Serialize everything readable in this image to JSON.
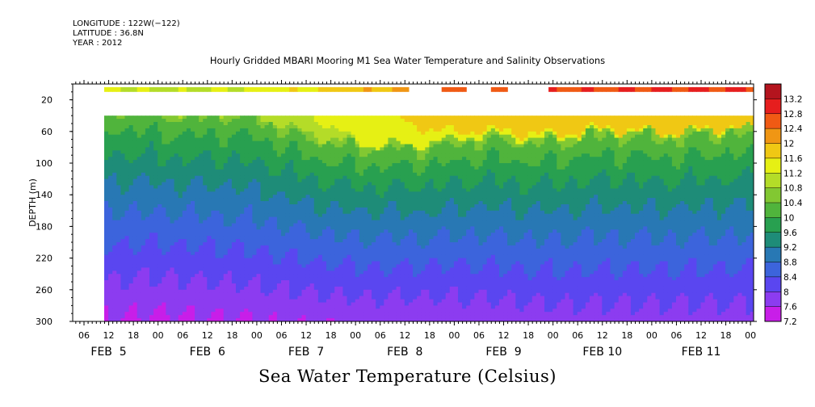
{
  "meta": {
    "longitude": "LONGITUDE : 122W(−122)",
    "latitude": "LATITUDE : 36.8N",
    "year": "YEAR : 2012"
  },
  "title": "Hourly Gridded MBARI Mooring M1 Sea Water Temperature and Salinity Observations",
  "footer_title": "Sea Water Temperature (Celsius)",
  "chart_data": {
    "type": "heatmap",
    "title": "Hourly Gridded MBARI Mooring M1 Sea Water Temperature and Salinity Observations",
    "ylabel": "DEPTH (m)",
    "xlabel": "",
    "y_reversed": true,
    "ylim": [
      300,
      0
    ],
    "y_ticks": [
      20,
      60,
      100,
      140,
      180,
      220,
      260,
      300
    ],
    "x_hour_ticks": [
      "06",
      "12",
      "18",
      "00",
      "06",
      "12",
      "18",
      "00",
      "06",
      "12",
      "18",
      "00",
      "06",
      "12",
      "18",
      "00",
      "06",
      "12",
      "18",
      "00",
      "06",
      "12",
      "18",
      "00",
      "06",
      "12",
      "18",
      "00",
      "06",
      "12",
      "18",
      "00",
      "00"
    ],
    "x_date_labels": [
      "FEB  5",
      "FEB  6",
      "FEB  7",
      "FEB  8",
      "FEB  9",
      "FEB 10",
      "FEB 11"
    ],
    "colorbar": {
      "label": "Sea Water Temperature (Celsius)",
      "tick_labels": [
        "7.2",
        "7.6",
        "8",
        "8.4",
        "8.8",
        "9.2",
        "9.6",
        "10",
        "10.4",
        "10.8",
        "11.2",
        "11.6",
        "12",
        "12.4",
        "12.8",
        "13.2"
      ],
      "colors": [
        "#c81ee8",
        "#8c3cf0",
        "#5a46f0",
        "#3c64dc",
        "#2878b4",
        "#1e8c78",
        "#28a050",
        "#50b43c",
        "#82c832",
        "#b4dc28",
        "#e6f014",
        "#f0c814",
        "#f09614",
        "#f05a14",
        "#e61e1e",
        "#b4141e"
      ]
    },
    "days": [
      "FEB 5",
      "FEB 6",
      "FEB 7",
      "FEB 8",
      "FEB 9",
      "FEB 10",
      "FEB 11"
    ],
    "surface_10m_temperature_by_day": [
      11.6,
      11.0,
      11.3,
      11.8,
      12.6,
      12.7,
      12.8
    ],
    "depth_of_11C_isotherm_m": [
      30,
      30,
      40,
      80,
      70,
      65,
      60
    ],
    "deep_300m_temperature": [
      7.6,
      7.5,
      7.6,
      7.7,
      7.7,
      7.8,
      7.8
    ],
    "grid": false,
    "legend": "right"
  }
}
